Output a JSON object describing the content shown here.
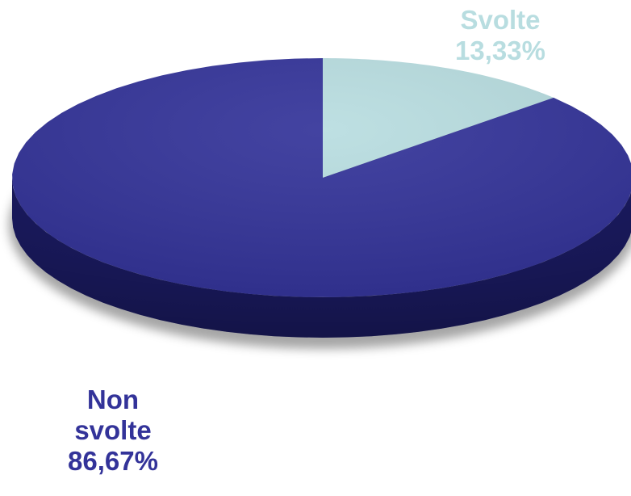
{
  "chart_data": {
    "type": "pie",
    "style": "3d",
    "categories": [
      "Svolte",
      "Non svolte"
    ],
    "values": [
      13.33,
      86.67
    ],
    "value_labels": [
      "13,33%",
      "86,67%"
    ],
    "label_lines": [
      [
        "Svolte",
        "13,33%"
      ],
      [
        "Non",
        "svolte",
        "86,67%"
      ]
    ],
    "colors": [
      "#b8dde0",
      "#333399"
    ],
    "side_colors": [
      "#8fb5b8",
      "#1e1e6e"
    ],
    "title": "",
    "legend": "none"
  }
}
